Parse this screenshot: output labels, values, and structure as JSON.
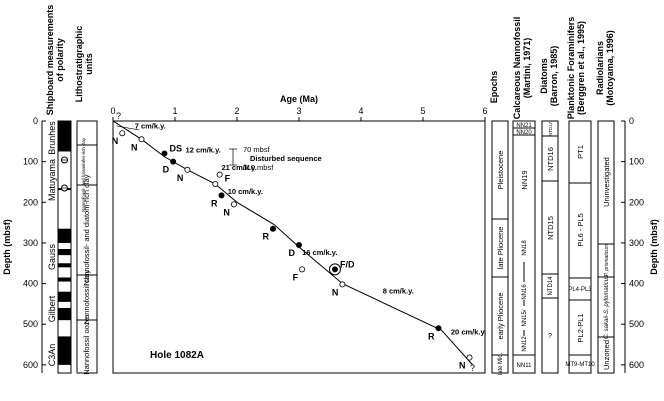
{
  "chart_data": {
    "type": "scatter",
    "hole_label": "Hole 1082A",
    "xlabel": "Age (Ma)",
    "ylabel_left": "Depth (mbsf)",
    "ylabel_right": "Depth (mbsf)",
    "xlim": [
      0,
      6
    ],
    "ylim": [
      0,
      620
    ],
    "x_ticks": [
      0,
      1,
      2,
      3,
      4,
      5,
      6
    ],
    "y_ticks": [
      0,
      100,
      200,
      300,
      400,
      500,
      600
    ],
    "age_depth_line": [
      [
        0,
        0
      ],
      [
        0.46,
        45
      ],
      [
        0.83,
        88
      ],
      [
        1.2,
        120
      ],
      [
        1.65,
        155
      ],
      [
        2.0,
        200
      ],
      [
        2.6,
        255
      ],
      [
        3.0,
        310
      ],
      [
        3.7,
        400
      ],
      [
        5.3,
        515
      ],
      [
        5.8,
        600
      ]
    ],
    "points": [
      {
        "x": 0.15,
        "y": 30,
        "filled": false,
        "label": "N"
      },
      {
        "x": 0.46,
        "y": 45,
        "filled": false,
        "label": "N"
      },
      {
        "x": 0.83,
        "y": 80,
        "filled": true,
        "label": "DS"
      },
      {
        "x": 0.97,
        "y": 100,
        "filled": true,
        "label": "D"
      },
      {
        "x": 1.2,
        "y": 120,
        "filled": false,
        "label": "N"
      },
      {
        "x": 1.72,
        "y": 132,
        "filled": false,
        "label": "F"
      },
      {
        "x": 1.65,
        "y": 155,
        "filled": false,
        "label": ""
      },
      {
        "x": 1.75,
        "y": 183,
        "filled": true,
        "label": "R"
      },
      {
        "x": 1.95,
        "y": 205,
        "filled": false,
        "label": "N"
      },
      {
        "x": 2.58,
        "y": 265,
        "filled": true,
        "label": "R"
      },
      {
        "x": 3.0,
        "y": 305,
        "filled": true,
        "label": "D"
      },
      {
        "x": 3.05,
        "y": 365,
        "filled": false,
        "label": "F"
      },
      {
        "x": 3.58,
        "y": 365,
        "filled": true,
        "label": "F/D",
        "ringed": true
      },
      {
        "x": 3.7,
        "y": 402,
        "filled": false,
        "label": "N"
      },
      {
        "x": 5.25,
        "y": 510,
        "filled": true,
        "label": "R"
      },
      {
        "x": 5.75,
        "y": 582,
        "filled": false,
        "label": "N"
      }
    ],
    "rates": [
      "7 cm/k.y.",
      "12 cm/k.y.",
      "21 cm/k.y.",
      "10 cm/k.y.",
      "16 cm/k.y.",
      "8 cm/k.y.",
      "20 cm/k.y."
    ],
    "disturbed": {
      "label": "Disturbed sequence",
      "top": "70 mbsf",
      "bottom": "110 mbsf"
    },
    "question_marks": [
      "?",
      "?"
    ]
  },
  "polarity": {
    "title": "Shipboard measurements of polarity",
    "chrons": [
      "Brunhes",
      "Matuyama",
      "Gauss",
      "Gilbert",
      "C3An"
    ],
    "black_intervals": [
      [
        0,
        75
      ],
      [
        165,
        170
      ],
      [
        265,
        300
      ],
      [
        315,
        330
      ],
      [
        350,
        360
      ],
      [
        385,
        395
      ],
      [
        420,
        445
      ],
      [
        460,
        490
      ],
      [
        530,
        600
      ]
    ]
  },
  "litho": {
    "title": "Lithostratigraphic units",
    "units": [
      "Nannofossil- and foraminifer-rich clay",
      "Nannofossil- and diatom-rich clay",
      "Nannofossil clay",
      "Nannofossil ooze"
    ]
  },
  "epochs": {
    "title": "Epochs",
    "items": [
      "Pleistocene",
      "late Pliocene",
      "early Pliocene",
      "late Mio."
    ]
  },
  "nanno": {
    "title": "Calcareous Nannofossil",
    "ref": "(Martini, 1971)",
    "zones": [
      "NN21",
      "NN20",
      "NN19",
      "NN18",
      "NN16",
      "NN15/",
      "NN12",
      "NN11"
    ]
  },
  "diatoms": {
    "title": "Diatoms",
    "ref": "(Barron, 1985)",
    "zones": [
      "NTD17",
      "NTD16",
      "NTD15",
      "NTD14",
      "?"
    ]
  },
  "forams": {
    "title": "Planktonic Foraminifers",
    "ref": "(Berggren et al., 1995)",
    "zones": [
      "PT1",
      "PL6 - PL5",
      "PL4-PL3",
      "PL2-PL1",
      "MT9-MT10"
    ]
  },
  "rads": {
    "title": "Radiolarians",
    "ref": "(Motoyama, 1996)",
    "zones": [
      "Uninvestigated",
      "P. prismaticum",
      "C. sakaii-S. pylomaticus",
      "Unzoned"
    ]
  }
}
